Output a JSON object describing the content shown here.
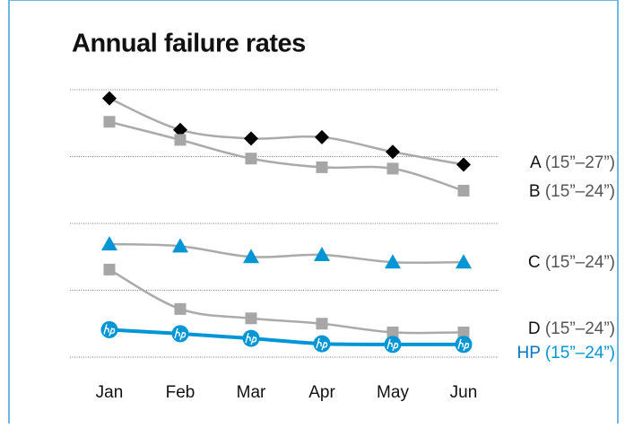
{
  "chart_data": {
    "type": "line",
    "title": "Annual failure rates",
    "categories": [
      "Jan",
      "Feb",
      "Mar",
      "Apr",
      "May",
      "Jun"
    ],
    "ylim": [
      0,
      4
    ],
    "yticks": [
      0,
      1,
      2,
      3,
      4
    ],
    "grid": true,
    "series": [
      {
        "name": "A (15”–27”)",
        "color": "#000000",
        "line_color": "#aaaaaa",
        "marker": "diamond",
        "values": [
          3.87,
          3.4,
          3.27,
          3.29,
          3.07,
          2.88
        ]
      },
      {
        "name": "B (15”–24”)",
        "color": "#a6a6a6",
        "line_color": "#aaaaaa",
        "marker": "square",
        "values": [
          3.52,
          3.25,
          2.97,
          2.84,
          2.82,
          2.49
        ]
      },
      {
        "name": "C (15”–24”)",
        "color": "#0096d6",
        "line_color": "#aaaaaa",
        "marker": "triangle",
        "values": [
          1.69,
          1.66,
          1.5,
          1.53,
          1.42,
          1.42
        ]
      },
      {
        "name": "D (15”–24”)",
        "color": "#a6a6a6",
        "line_color": "#aaaaaa",
        "marker": "square",
        "values": [
          1.31,
          0.72,
          0.58,
          0.5,
          0.37,
          0.37
        ]
      },
      {
        "name": "HP (15”–24”)",
        "color": "#0096d6",
        "line_color": "#0096d6",
        "marker": "circle",
        "values": [
          0.41,
          0.35,
          0.28,
          0.2,
          0.19,
          0.19
        ]
      }
    ]
  }
}
